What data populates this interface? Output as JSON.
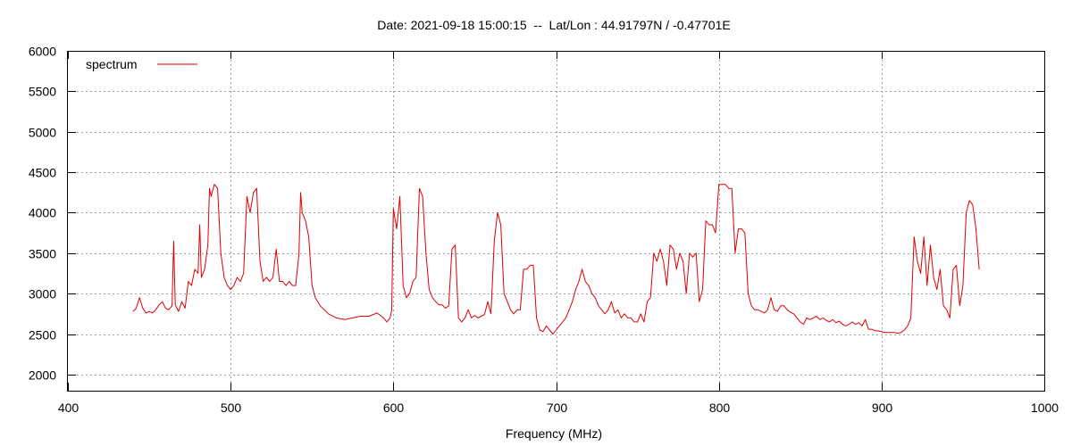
{
  "chart_data": {
    "type": "line",
    "title": "Date: 2021-09-18 15:00:15  --  Lat/Lon : 44.91797N / -0.47701E",
    "xlabel": "Frequency (MHz)",
    "ylabel": "",
    "xlim": [
      400,
      1000
    ],
    "ylim": [
      1800,
      6000
    ],
    "xticks": [
      400,
      500,
      600,
      700,
      800,
      900,
      1000
    ],
    "yticks": [
      2000,
      2500,
      3000,
      3500,
      4000,
      4500,
      5000,
      5500,
      6000
    ],
    "grid": true,
    "legend": {
      "position": "top-left"
    },
    "series": [
      {
        "name": "spectrum",
        "color": "#e00000",
        "x": [
          440,
          442,
          444,
          446,
          448,
          450,
          452,
          454,
          456,
          458,
          460,
          462,
          464,
          465,
          466,
          468,
          470,
          472,
          474,
          476,
          478,
          480,
          481,
          482,
          484,
          486,
          487,
          488,
          490,
          492,
          494,
          496,
          498,
          500,
          502,
          504,
          506,
          508,
          510,
          512,
          514,
          516,
          518,
          520,
          522,
          524,
          526,
          528,
          530,
          532,
          534,
          536,
          538,
          540,
          542,
          543,
          544,
          546,
          548,
          550,
          552,
          555,
          560,
          565,
          570,
          575,
          580,
          585,
          590,
          594,
          596,
          598,
          599,
          600,
          602,
          604,
          606,
          608,
          610,
          612,
          614,
          616,
          618,
          620,
          622,
          624,
          626,
          628,
          630,
          632,
          634,
          636,
          638,
          640,
          642,
          644,
          646,
          648,
          650,
          652,
          654,
          656,
          658,
          660,
          662,
          664,
          666,
          668,
          670,
          672,
          674,
          676,
          678,
          680,
          682,
          684,
          686,
          688,
          690,
          692,
          694,
          696,
          698,
          700,
          702,
          704,
          706,
          708,
          710,
          712,
          714,
          716,
          718,
          720,
          722,
          724,
          726,
          728,
          730,
          732,
          734,
          736,
          738,
          740,
          742,
          744,
          746,
          748,
          750,
          752,
          754,
          756,
          758,
          760,
          762,
          764,
          766,
          768,
          770,
          772,
          774,
          776,
          778,
          780,
          782,
          784,
          786,
          788,
          790,
          792,
          794,
          796,
          798,
          800,
          802,
          804,
          806,
          808,
          810,
          812,
          814,
          816,
          818,
          820,
          822,
          824,
          826,
          828,
          830,
          832,
          834,
          836,
          838,
          840,
          842,
          844,
          846,
          848,
          850,
          852,
          854,
          856,
          858,
          860,
          862,
          864,
          866,
          868,
          870,
          872,
          874,
          876,
          878,
          880,
          882,
          884,
          886,
          888,
          890,
          892,
          894,
          896,
          898,
          900,
          902,
          904,
          906,
          908,
          910,
          912,
          914,
          916,
          918,
          920,
          922,
          924,
          926,
          928,
          930,
          932,
          934,
          936,
          938,
          940,
          942,
          944,
          946,
          948,
          950,
          952,
          954,
          956,
          958,
          960
        ],
        "y": [
          2780,
          2820,
          2950,
          2820,
          2760,
          2780,
          2760,
          2800,
          2860,
          2900,
          2820,
          2800,
          2850,
          3650,
          2860,
          2780,
          2900,
          2820,
          3150,
          3100,
          3300,
          3250,
          3850,
          3200,
          3300,
          3600,
          4300,
          4200,
          4350,
          4300,
          3500,
          3200,
          3100,
          3050,
          3100,
          3200,
          3150,
          3250,
          4200,
          4000,
          4250,
          4300,
          3400,
          3150,
          3200,
          3150,
          3200,
          3550,
          3150,
          3150,
          3100,
          3150,
          3100,
          3100,
          3500,
          4250,
          4000,
          3900,
          3700,
          3100,
          2950,
          2850,
          2750,
          2700,
          2680,
          2700,
          2720,
          2720,
          2760,
          2700,
          2650,
          2700,
          2800,
          4050,
          3800,
          4200,
          3100,
          2950,
          3000,
          3150,
          3200,
          4300,
          4200,
          3500,
          3050,
          2950,
          2900,
          2860,
          2860,
          2820,
          2850,
          3550,
          3600,
          2700,
          2650,
          2700,
          2800,
          2700,
          2730,
          2700,
          2720,
          2740,
          2900,
          2750,
          3650,
          4000,
          3850,
          3000,
          2900,
          2800,
          2750,
          2800,
          2800,
          3300,
          3300,
          3350,
          3350,
          2700,
          2550,
          2530,
          2600,
          2550,
          2500,
          2550,
          2600,
          2650,
          2700,
          2800,
          2900,
          3050,
          3150,
          3300,
          3150,
          3100,
          3000,
          2950,
          2850,
          2800,
          2750,
          2800,
          2900,
          2760,
          2800,
          2700,
          2750,
          2700,
          2700,
          2650,
          2650,
          2750,
          2650,
          2900,
          2950,
          3500,
          3400,
          3550,
          3400,
          3100,
          3600,
          3550,
          3300,
          3500,
          3400,
          3000,
          3500,
          3450,
          3500,
          2900,
          3050,
          3900,
          3850,
          3850,
          3750,
          4350,
          4350,
          4350,
          4300,
          4300,
          3500,
          3800,
          3800,
          3750,
          3000,
          2850,
          2800,
          2800,
          2780,
          2760,
          2800,
          2950,
          2800,
          2780,
          2850,
          2850,
          2800,
          2770,
          2750,
          2700,
          2650,
          2620,
          2700,
          2680,
          2700,
          2720,
          2680,
          2700,
          2670,
          2650,
          2680,
          2640,
          2660,
          2620,
          2600,
          2620,
          2650,
          2620,
          2640,
          2600,
          2680,
          2560,
          2560,
          2540,
          2540,
          2530,
          2520,
          2520,
          2520,
          2520,
          2510,
          2520,
          2550,
          2600,
          2700,
          3700,
          3400,
          3250,
          3700,
          3100,
          3600,
          3200,
          3050,
          3300,
          2850,
          2800,
          2700,
          3300,
          3350,
          2850,
          3100,
          4000,
          4150,
          4100,
          3800,
          3300
        ]
      }
    ]
  }
}
